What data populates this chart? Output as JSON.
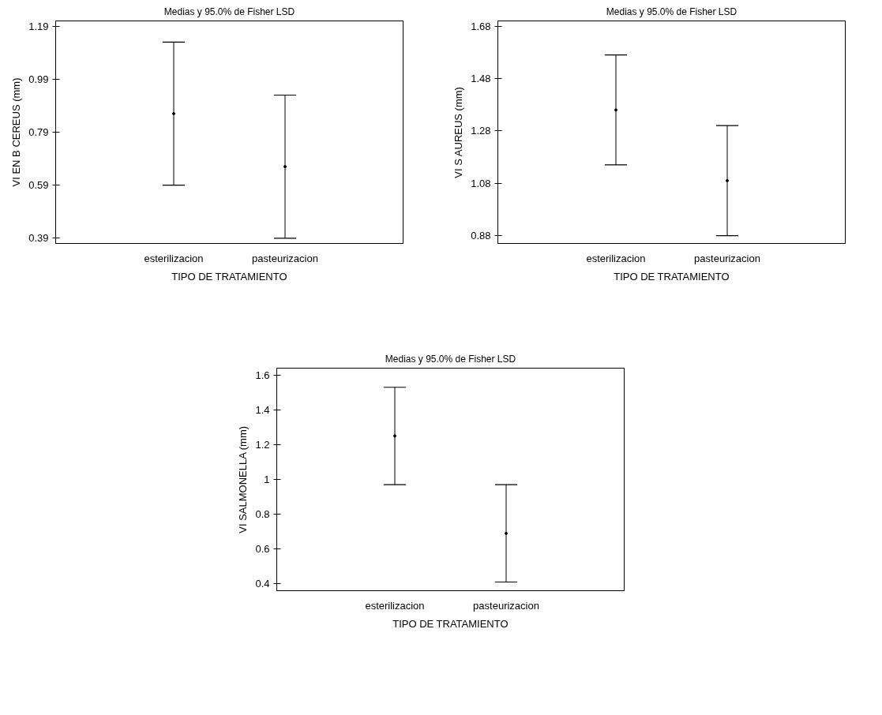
{
  "chart_data": [
    {
      "type": "scatter",
      "title": "Medias y 95.0% de Fisher LSD",
      "xlabel": "TIPO DE TRATAMIENTO",
      "ylabel": "VI EN B CEREUS (mm)",
      "categories": [
        "esterilizacion",
        "pasteurizacion"
      ],
      "values": [
        0.86,
        0.66
      ],
      "errors": [
        0.27,
        0.27
      ],
      "color": "#000000",
      "marker": "circle",
      "ylim": [
        0.37,
        1.21
      ],
      "yticks": [
        0.39,
        0.59,
        0.79,
        0.99,
        1.19
      ],
      "grid": false
    },
    {
      "type": "scatter",
      "title": "Medias y 95.0% de Fisher LSD",
      "xlabel": "TIPO DE TRATAMIENTO",
      "ylabel": "VI S AUREUS (mm)",
      "categories": [
        "esterilizacion",
        "pasteurizacion"
      ],
      "values": [
        1.36,
        1.09
      ],
      "errors": [
        0.21,
        0.21
      ],
      "color": "#000000",
      "marker": "circle",
      "ylim": [
        0.85,
        1.7
      ],
      "yticks": [
        0.88,
        1.08,
        1.28,
        1.48,
        1.68
      ],
      "grid": false
    },
    {
      "type": "scatter",
      "title": "Medias y 95.0% de Fisher LSD",
      "xlabel": "TIPO DE TRATAMIENTO",
      "ylabel": "VI SALMONELLA (mm)",
      "categories": [
        "esterilizacion",
        "pasteurizacion"
      ],
      "values": [
        1.25,
        0.69
      ],
      "errors": [
        0.28,
        0.28
      ],
      "color": "#000000",
      "marker": "circle",
      "ylim": [
        0.36,
        1.64
      ],
      "yticks": [
        0.4,
        0.6,
        0.8,
        1,
        1.2,
        1.4,
        1.6
      ],
      "grid": false
    }
  ]
}
